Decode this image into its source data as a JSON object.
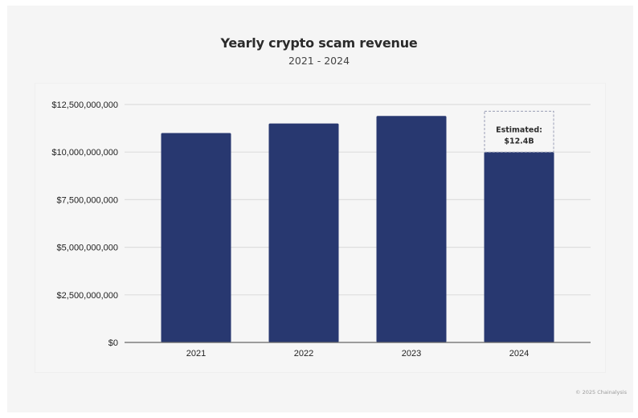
{
  "chart_data": {
    "type": "bar",
    "title": "Yearly crypto scam revenue",
    "subtitle": "2021 - 2024",
    "categories": [
      "2021",
      "2022",
      "2023",
      "2024"
    ],
    "values": [
      11000000000,
      11500000000,
      11900000000,
      10000000000
    ],
    "xlabel": "",
    "ylabel": "",
    "ylim": [
      0,
      12500000000
    ],
    "yticks": [
      0,
      2500000000,
      5000000000,
      7500000000,
      10000000000,
      12500000000
    ],
    "ytick_labels": [
      "$0",
      "$2,500,000,000",
      "$5,000,000,000",
      "$7,500,000,000",
      "$10,000,000,000",
      "$12,500,000,000"
    ],
    "grid": true,
    "annotation": {
      "category": "2024",
      "estimated_value": 12400000000,
      "line1": "Estimated:",
      "line2": "$12.4B"
    },
    "colors": {
      "bar": "#283870",
      "grid": "#dedede",
      "axis": "#666666"
    }
  },
  "footer": {
    "copyright": "© 2025 Chainalysis"
  }
}
